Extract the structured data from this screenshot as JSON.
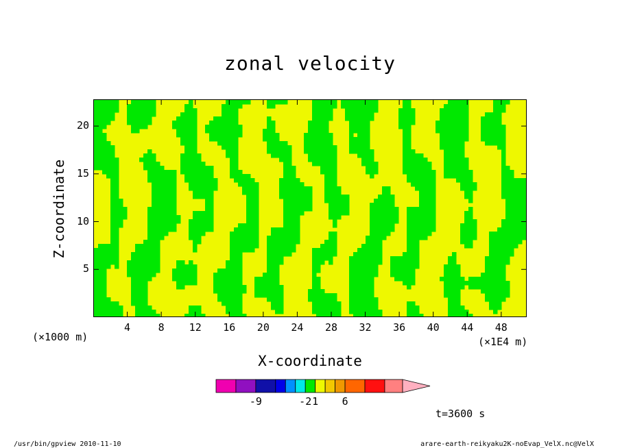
{
  "title": "zonal velocity",
  "chart_data": {
    "type": "heatmap",
    "title": "zonal velocity",
    "xlabel": "X-coordinate",
    "ylabel": "Z-coordinate",
    "x_unit": "(×1E4 m)",
    "y_unit": "(×1000 m)",
    "xlim": [
      0,
      51
    ],
    "ylim": [
      0,
      22.8
    ],
    "x_ticks": [
      4,
      8,
      12,
      16,
      20,
      24,
      28,
      32,
      36,
      40,
      44,
      48
    ],
    "y_ticks": [
      5,
      10,
      15,
      20
    ],
    "fill_colors_visible": [
      "#00e800",
      "#eef800"
    ],
    "colorbar": {
      "colors": [
        "#f000b0",
        "#9010c0",
        "#1010a8",
        "#0000e8",
        "#0090ff",
        "#00e8e8",
        "#00e800",
        "#eef800",
        "#f2c800",
        "#f09800",
        "#ff6600",
        "#ff1010",
        "#ff8080",
        "#ffb0c0"
      ],
      "labels": [
        "-9",
        "-2",
        "1",
        "6"
      ]
    }
  },
  "annotations": {
    "time": "t=3600 s",
    "footer_left": "/usr/bin/gpview   2010-11-10",
    "footer_right": "arare-earth-reikyaku2K-noEvap_VelX.nc@VelX"
  }
}
